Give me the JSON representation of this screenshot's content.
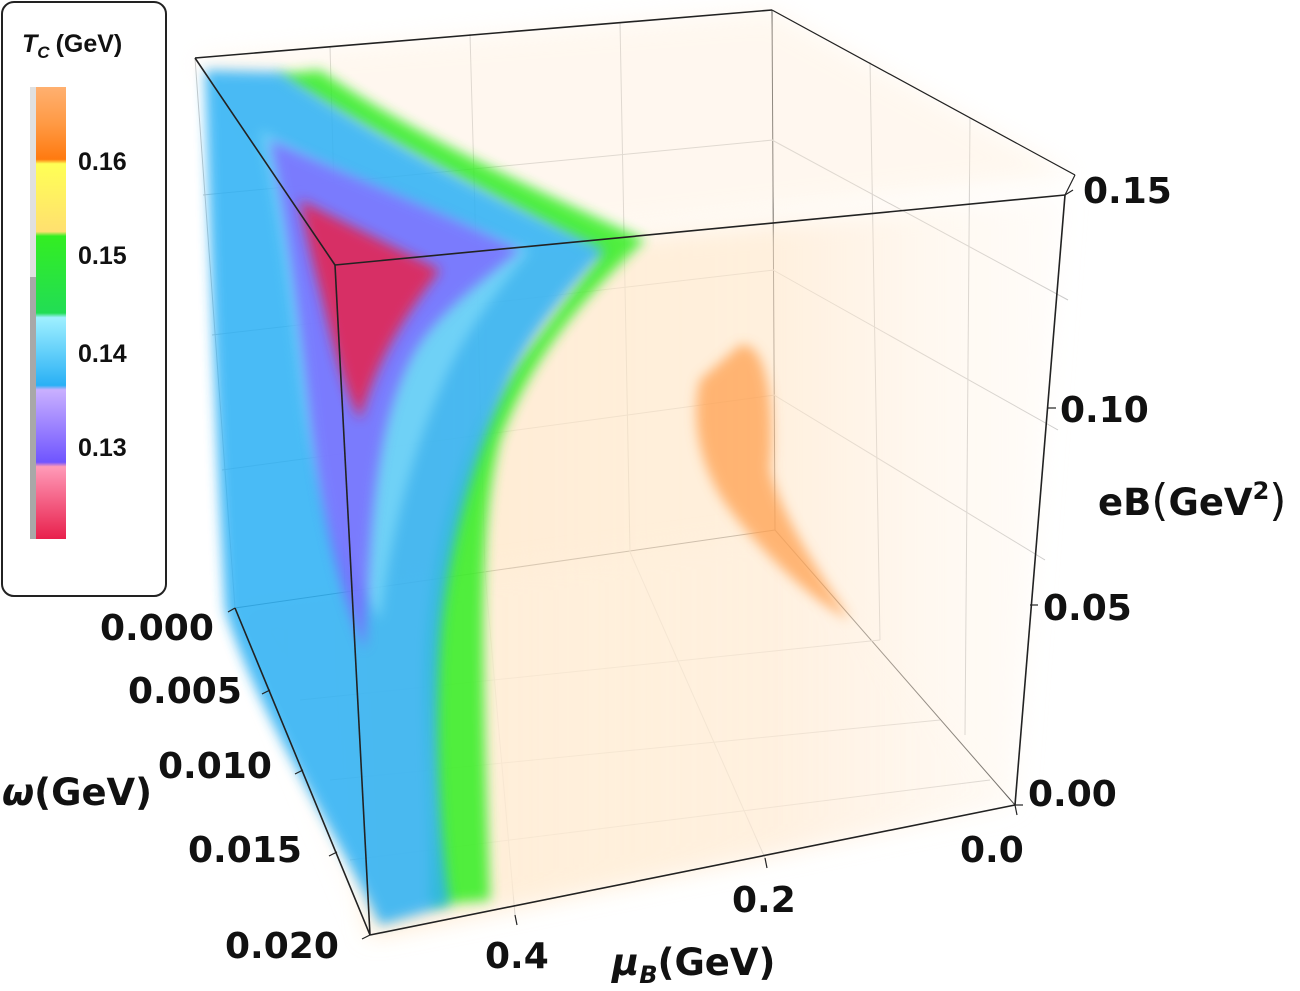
{
  "chart_data": {
    "type": "density-3d",
    "axes": {
      "x": {
        "label_symbol": "μ",
        "label_sub": "B",
        "label_unit": "(GeV)",
        "ticks": [
          "0.0",
          "0.2",
          "0.4"
        ],
        "range": [
          0.0,
          0.5
        ]
      },
      "y": {
        "label_symbol": "ω",
        "label_unit": "(GeV)",
        "ticks": [
          "0.000",
          "0.005",
          "0.010",
          "0.015",
          "0.020"
        ],
        "range": [
          0.0,
          0.02
        ]
      },
      "z": {
        "label_main": "eB",
        "label_unit": "GeV",
        "label_sup": "2",
        "ticks": [
          "0.00",
          "0.05",
          "0.10",
          "0.15"
        ],
        "range": [
          0.0,
          0.15
        ]
      }
    },
    "legend": {
      "title_symbol": "T",
      "title_sub": "C",
      "title_unit": "(GeV)",
      "placement": "top-left",
      "ticks": [
        "0.16",
        "0.15",
        "0.14",
        "0.13"
      ],
      "range": [
        0.12,
        0.168
      ],
      "stops": [
        {
          "value": 0.168,
          "color": "#ffb070"
        },
        {
          "value": 0.162,
          "color": "#ff7a10"
        },
        {
          "value": 0.158,
          "color": "#ffff55"
        },
        {
          "value": 0.152,
          "color": "#ffe070"
        },
        {
          "value": 0.148,
          "color": "#33ee22"
        },
        {
          "value": 0.144,
          "color": "#9ff0ff"
        },
        {
          "value": 0.138,
          "color": "#29b0f5"
        },
        {
          "value": 0.134,
          "color": "#c9b0ff"
        },
        {
          "value": 0.13,
          "color": "#6f55ff"
        },
        {
          "value": 0.126,
          "color": "#ff9ab8"
        },
        {
          "value": 0.12,
          "color": "#e8204c"
        }
      ]
    },
    "regions": [
      {
        "name": "region-red",
        "tc": 0.122,
        "color": "#e8204c"
      },
      {
        "name": "region-purple",
        "tc": 0.131,
        "color": "#7d66ff"
      },
      {
        "name": "region-blue",
        "tc": 0.138,
        "color": "#29b0f5"
      },
      {
        "name": "region-green",
        "tc": 0.148,
        "color": "#33ee22"
      },
      {
        "name": "region-orange",
        "tc": 0.165,
        "color": "#ffa050"
      }
    ],
    "grid": true,
    "box": true
  }
}
